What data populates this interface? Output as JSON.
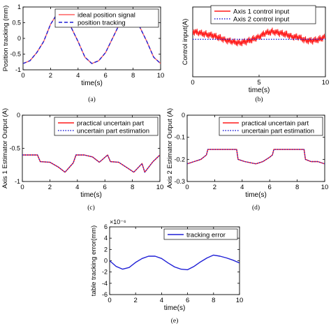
{
  "colors": {
    "red": "#ff1a1a",
    "blue": "#1f1fd6",
    "frame": "#000000"
  },
  "chart_data": [
    {
      "type": "line",
      "title": "",
      "caption": "(a)",
      "xlabel": "time(s)",
      "ylabel": "Position tracking (mm)",
      "xlim": [
        0,
        10
      ],
      "ylim": [
        -1,
        1
      ],
      "xticks": [
        0,
        2,
        4,
        6,
        8,
        10
      ],
      "yticks": [
        -1,
        -0.5,
        0,
        0.5,
        1
      ],
      "legend_position": "top-right",
      "series": [
        {
          "name": "ideal position signal",
          "style": "solid",
          "color": "#ff6060",
          "x": [
            0,
            0.5,
            1,
            1.5,
            2,
            2.5,
            3,
            3.5,
            4,
            4.5,
            5,
            5.5,
            6,
            6.5,
            7,
            7.5,
            8,
            8.5,
            9,
            9.5,
            10
          ],
          "y": [
            -0.8,
            -0.71,
            -0.45,
            -0.1,
            0.45,
            0.8,
            0.71,
            0.35,
            -0.1,
            -0.6,
            -0.8,
            -0.71,
            -0.45,
            0.0,
            0.45,
            0.8,
            0.71,
            0.35,
            -0.1,
            -0.6,
            -0.8
          ]
        },
        {
          "name": "position tracking",
          "style": "dashed",
          "color": "#1f1fd6",
          "x": [
            0,
            0.5,
            1,
            1.5,
            2,
            2.5,
            3,
            3.5,
            4,
            4.5,
            5,
            5.5,
            6,
            6.5,
            7,
            7.5,
            8,
            8.5,
            9,
            9.5,
            10
          ],
          "y": [
            -0.8,
            -0.71,
            -0.45,
            -0.1,
            0.45,
            0.8,
            0.71,
            0.35,
            -0.1,
            -0.6,
            -0.8,
            -0.71,
            -0.45,
            0.0,
            0.45,
            0.8,
            0.71,
            0.35,
            -0.1,
            -0.6,
            -0.8
          ]
        }
      ]
    },
    {
      "type": "line",
      "title": "",
      "caption": "(b)",
      "xlabel": "time(s)",
      "ylabel": "Control input(A)",
      "xlim": [
        0,
        10
      ],
      "ylim": [
        -4,
        4
      ],
      "xticks": [
        0,
        5,
        10
      ],
      "yticks": [],
      "legend_position": "top",
      "series": [
        {
          "name": "Axis 1 control input",
          "style": "solid-noisy",
          "color": "#ff1a1a",
          "x": [
            0,
            0.5,
            1,
            1.5,
            2,
            2.5,
            3,
            3.5,
            4,
            4.5,
            5,
            5.5,
            6,
            6.5,
            7,
            7.5,
            8,
            8.5,
            9,
            9.5,
            10
          ],
          "y": [
            1.2,
            1.0,
            0.9,
            0.7,
            0.5,
            0.2,
            0.0,
            -0.1,
            0.0,
            0.3,
            0.6,
            1.0,
            1.2,
            1.0,
            0.9,
            0.6,
            0.5,
            0.2,
            0.1,
            0.3,
            0.6
          ]
        },
        {
          "name": "Axis 2 control input",
          "style": "dotted",
          "color": "#1f1fd6",
          "x": [
            0,
            10
          ],
          "y": [
            0.3,
            0.3
          ]
        }
      ]
    },
    {
      "type": "line",
      "title": "",
      "caption": "(c)",
      "xlabel": "time(s)",
      "ylabel": "Axis 1 Estimator Output (A)",
      "xlim": [
        0,
        10
      ],
      "ylim": [
        -1,
        0
      ],
      "xticks": [
        0,
        2,
        4,
        6,
        8,
        10
      ],
      "yticks": [
        -1,
        -0.5,
        0
      ],
      "legend_position": "top-right",
      "series": [
        {
          "name": "practical uncertain part",
          "style": "solid",
          "color": "#ff1a1a",
          "x": [
            0,
            1.1,
            1.3,
            2,
            2.6,
            3.1,
            3.7,
            3.9,
            4.5,
            5.1,
            5.6,
            6.2,
            6.4,
            7,
            7.6,
            8.1,
            8.7,
            8.9,
            9.5,
            10
          ],
          "y": [
            -0.6,
            -0.6,
            -0.7,
            -0.71,
            -0.78,
            -0.86,
            -0.72,
            -0.6,
            -0.6,
            -0.63,
            -0.71,
            -0.6,
            -0.7,
            -0.71,
            -0.79,
            -0.86,
            -0.73,
            -0.86,
            -0.7,
            -0.6
          ]
        },
        {
          "name": "uncertain part estimation",
          "style": "dotted",
          "color": "#1f1fd6",
          "x": [
            0,
            1.1,
            1.3,
            2,
            2.6,
            3.1,
            3.7,
            3.9,
            4.5,
            5.1,
            5.6,
            6.2,
            6.4,
            7,
            7.6,
            8.1,
            8.7,
            8.9,
            9.5,
            10
          ],
          "y": [
            -0.6,
            -0.6,
            -0.7,
            -0.71,
            -0.78,
            -0.86,
            -0.72,
            -0.6,
            -0.6,
            -0.63,
            -0.71,
            -0.6,
            -0.7,
            -0.71,
            -0.79,
            -0.86,
            -0.73,
            -0.86,
            -0.7,
            -0.6
          ]
        }
      ]
    },
    {
      "type": "line",
      "title": "",
      "caption": "(d)",
      "xlabel": "time(s)",
      "ylabel": "Axis 2 Estimator Output (A)",
      "xlim": [
        0,
        10
      ],
      "ylim": [
        -0.3,
        0
      ],
      "xticks": [
        0,
        2,
        4,
        6,
        8,
        10
      ],
      "yticks": [
        -0.3,
        -0.2,
        -0.1,
        0
      ],
      "legend_position": "top-right",
      "series": [
        {
          "name": "practical uncertain part",
          "style": "solid",
          "color": "#ff1a1a",
          "x": [
            0,
            0.5,
            1,
            1.4,
            1.5,
            3.6,
            3.7,
            4.2,
            5,
            5.5,
            6,
            6.2,
            6.3,
            8.5,
            8.6,
            9,
            9.5,
            10
          ],
          "y": [
            -0.22,
            -0.21,
            -0.2,
            -0.18,
            -0.155,
            -0.155,
            -0.2,
            -0.21,
            -0.22,
            -0.21,
            -0.19,
            -0.18,
            -0.155,
            -0.155,
            -0.2,
            -0.21,
            -0.21,
            -0.22
          ]
        },
        {
          "name": "uncertain part estimation",
          "style": "dotted",
          "color": "#1f1fd6",
          "x": [
            0,
            0.5,
            1,
            1.4,
            1.5,
            3.6,
            3.7,
            4.2,
            5,
            5.5,
            6,
            6.2,
            6.3,
            8.5,
            8.6,
            9,
            9.5,
            10
          ],
          "y": [
            -0.22,
            -0.21,
            -0.2,
            -0.18,
            -0.155,
            -0.155,
            -0.2,
            -0.21,
            -0.22,
            -0.21,
            -0.19,
            -0.18,
            -0.155,
            -0.155,
            -0.2,
            -0.21,
            -0.21,
            -0.22
          ]
        }
      ]
    },
    {
      "type": "line",
      "title": "",
      "caption": "(e)",
      "xlabel": "time(s)",
      "ylabel": "table tracking error(mm)",
      "y_exponent": "×10⁻⁶",
      "xlim": [
        0,
        10
      ],
      "ylim": [
        -6,
        6
      ],
      "xticks": [
        0,
        2,
        4,
        6,
        8,
        10
      ],
      "yticks": [
        -6,
        -4,
        -2,
        0,
        2,
        4,
        6
      ],
      "legend_position": "top-right",
      "series": [
        {
          "name": "tracking error",
          "style": "solid",
          "color": "#1f1fd6",
          "x": [
            0,
            0.5,
            1,
            1.5,
            2,
            2.5,
            3,
            3.5,
            4,
            4.5,
            5,
            5.5,
            6,
            6.5,
            7,
            7.5,
            8,
            8.5,
            9,
            9.5,
            10
          ],
          "y": [
            0,
            -1.0,
            -1.5,
            -1.2,
            -0.3,
            0.4,
            0.8,
            0.8,
            0.4,
            -0.4,
            -1.1,
            -1.5,
            -1.6,
            -1.0,
            -0.2,
            0.5,
            1.0,
            0.8,
            0.5,
            0.1,
            -0.4
          ]
        }
      ]
    }
  ]
}
